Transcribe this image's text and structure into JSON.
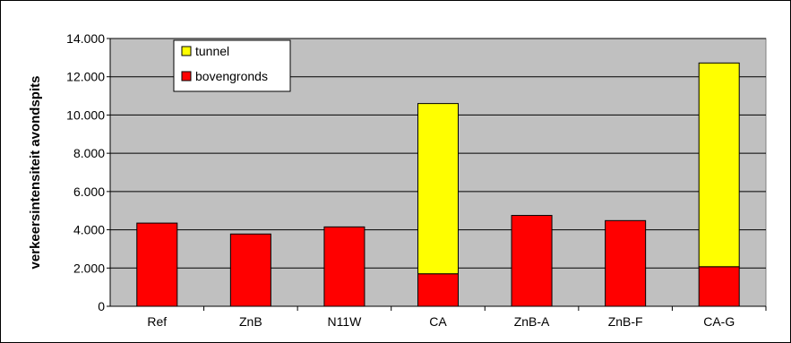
{
  "chart_data": {
    "type": "bar",
    "stacked": true,
    "categories": [
      "Ref",
      "ZnB",
      "N11W",
      "CA",
      "ZnB-A",
      "ZnB-F",
      "CA-G"
    ],
    "series": [
      {
        "name": "bovengronds",
        "color": "#ff0000",
        "values": [
          4350,
          3780,
          4150,
          1700,
          4750,
          4480,
          2070
        ]
      },
      {
        "name": "tunnel",
        "color": "#ffff00",
        "values": [
          0,
          0,
          0,
          8900,
          0,
          0,
          10650
        ]
      }
    ],
    "ylabel": "verkeersintensiteit avondspits",
    "xlabel": "",
    "ylim": [
      0,
      14000
    ],
    "yticks": [
      "0",
      "2.000",
      "4.000",
      "6.000",
      "8.000",
      "10.000",
      "12.000",
      "14.000"
    ],
    "ytick_values": [
      0,
      2000,
      4000,
      6000,
      8000,
      10000,
      12000,
      14000
    ],
    "grid": true,
    "plot_background": "#c0c0c0",
    "legend": {
      "placement": "top-left",
      "entries": [
        "tunnel",
        "bovengronds"
      ]
    }
  }
}
